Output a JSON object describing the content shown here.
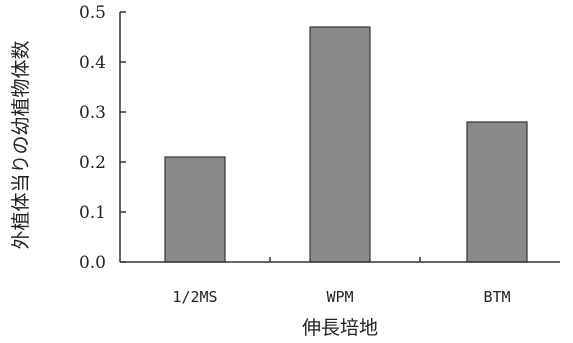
{
  "chart_data": {
    "type": "bar",
    "categories": [
      "1/2MS",
      "WPM",
      "BTM"
    ],
    "values": [
      0.21,
      0.47,
      0.28
    ],
    "xlabel": "伸長培地",
    "ylabel": "外植体当りの幼植物体数",
    "ylim": [
      0.0,
      0.5
    ],
    "yticks": [
      "0.0",
      "0.1",
      "0.2",
      "0.3",
      "0.4",
      "0.5"
    ],
    "grid": false,
    "bar_color": "#8a8a8a"
  }
}
